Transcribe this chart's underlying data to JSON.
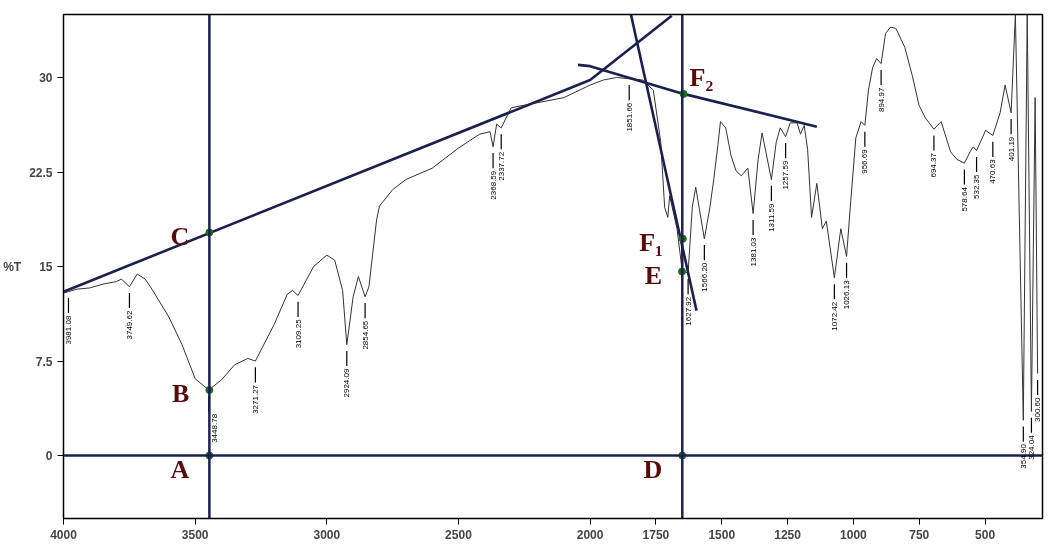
{
  "chart_data": {
    "type": "line",
    "ylabel": "%T",
    "xlim": [
      4000,
      282
    ],
    "xticks": [
      4000,
      3500,
      3000,
      2500,
      2000,
      1750,
      1500,
      1250,
      1000,
      750,
      500
    ],
    "ylim": [
      -5,
      35
    ],
    "yticks": [
      0,
      7.5,
      15,
      22.5,
      30
    ],
    "series": [
      {
        "color": "#333333",
        "x": [
          4000,
          3981.08,
          3950,
          3900,
          3850,
          3800,
          3780,
          3749.62,
          3720,
          3690,
          3670,
          3600,
          3550,
          3500,
          3448.78,
          3400,
          3350,
          3300,
          3271.27,
          3200,
          3150,
          3130,
          3109.25,
          3050,
          3000,
          2970,
          2940,
          2924.09,
          2900,
          2880,
          2854.65,
          2840,
          2811,
          2800,
          2750,
          2700,
          2600,
          2500,
          2420,
          2380,
          2368.59,
          2355,
          2337.72,
          2300,
          2200,
          2100,
          2000,
          1950,
          1900,
          1851.66,
          1800,
          1760,
          1732,
          1717,
          1705,
          1698,
          1670,
          1650,
          1627.92,
          1612,
          1599,
          1566.2,
          1545,
          1530,
          1515,
          1505,
          1485,
          1465,
          1446,
          1426,
          1401,
          1381.03,
          1362,
          1347,
          1311.59,
          1293,
          1278,
          1257.59,
          1240,
          1214,
          1201,
          1187,
          1174,
          1159,
          1139,
          1118,
          1103,
          1072.42,
          1048,
          1026.13,
          1012,
          991,
          971,
          956.69,
          943,
          927,
          912,
          894.97,
          878,
          859,
          839,
          805,
          776,
          751,
          727,
          694.37,
          667,
          631,
          607,
          578.64,
          557,
          545,
          532.35,
          498,
          470.63,
          443,
          424,
          401.19,
          385,
          354.9,
          340,
          324.04,
          310,
          300.6
        ],
        "values": [
          12.9,
          13.0,
          13.2,
          13.3,
          13.6,
          13.8,
          14.0,
          13.4,
          14.4,
          14.0,
          13.4,
          11.0,
          8.8,
          6.1,
          5.2,
          6.0,
          7.2,
          7.7,
          7.5,
          10.4,
          12.8,
          13.1,
          12.7,
          15.0,
          15.9,
          15.5,
          13.1,
          8.8,
          12.6,
          14.2,
          12.6,
          13.4,
          18.7,
          19.8,
          21.1,
          21.9,
          22.8,
          24.4,
          25.5,
          25.7,
          24.5,
          26.3,
          26.0,
          27.6,
          28.0,
          28.4,
          29.4,
          29.8,
          30.0,
          29.9,
          29.8,
          29.0,
          24.9,
          19.7,
          18.9,
          20.6,
          18.0,
          14.6,
          14.5,
          19.7,
          21.3,
          17.2,
          19.7,
          22.0,
          24.6,
          26.5,
          26.0,
          23.8,
          22.6,
          22.2,
          22.8,
          19.2,
          23.5,
          25.6,
          21.9,
          24.9,
          26.0,
          25.3,
          26.4,
          26.4,
          25.5,
          26.2,
          24.3,
          18.9,
          21.6,
          18.0,
          18.6,
          14.1,
          18.0,
          15.8,
          19.7,
          25.2,
          26.5,
          26.2,
          29.0,
          30.8,
          31.5,
          31.1,
          33.5,
          34.0,
          33.9,
          32.4,
          30.1,
          27.8,
          26.8,
          25.9,
          26.5,
          24.1,
          23.5,
          23.2,
          24.1,
          24.5,
          24.2,
          25.8,
          25.4,
          27.2,
          29.4,
          27.2,
          35.0,
          2.8,
          35.0,
          3.5,
          28.4,
          6.5
        ]
      },
      {
        "color": "#1b2050",
        "x": [
          4000,
          2000,
          1690
        ],
        "values": [
          13.0,
          29.8,
          34.9
        ]
      },
      {
        "color": "#1b2050",
        "x": [
          2046,
          2000,
          1645,
          1139
        ],
        "values": [
          31.0,
          30.9,
          28.7,
          26.1
        ]
      },
      {
        "color": "#1b2050",
        "x": [
          1845,
          1596
        ],
        "values": [
          35.0,
          11.5
        ]
      },
      {
        "type": "scatter",
        "marker": "circle",
        "color": "#1e6b1e",
        "x": [
          3446,
          3446,
          3446,
          1650,
          1651,
          1648,
          1645
        ],
        "values": [
          0,
          5.2,
          17.7,
          0,
          14.6,
          17.2,
          28.7
        ],
        "value_labels": [
          "A",
          "B",
          "C",
          "D",
          "E",
          "F₁",
          "F₂"
        ]
      }
    ],
    "ref_lines": [
      {
        "axis": "x",
        "value": 3446,
        "color": "#1b2050"
      },
      {
        "axis": "x",
        "value": 1650,
        "color": "#1b2050"
      },
      {
        "axis": "y",
        "value": 0,
        "color": "#1b2050"
      }
    ],
    "annotations": [
      {
        "text": "3981.08",
        "x": 3981.08,
        "y": 13.0
      },
      {
        "text": "3749.62",
        "x": 3749.62,
        "y": 13.4
      },
      {
        "text": "3448.78",
        "x": 3448.78,
        "y": 5.2
      },
      {
        "text": "3271.27",
        "x": 3271.27,
        "y": 7.5
      },
      {
        "text": "3109.25",
        "x": 3109.25,
        "y": 12.7
      },
      {
        "text": "2924.09",
        "x": 2924.09,
        "y": 8.8
      },
      {
        "text": "2854.65",
        "x": 2854.65,
        "y": 12.6
      },
      {
        "text": "2368.59",
        "x": 2368.59,
        "y": 24.5
      },
      {
        "text": "2337.72",
        "x": 2337.72,
        "y": 26.0
      },
      {
        "text": "1851.66",
        "x": 1851.66,
        "y": 29.9
      },
      {
        "text": "1627.92",
        "x": 1627.92,
        "y": 14.5
      },
      {
        "text": "1566.20",
        "x": 1566.2,
        "y": 17.2
      },
      {
        "text": "1381.03",
        "x": 1381.03,
        "y": 19.2
      },
      {
        "text": "1311.59",
        "x": 1311.59,
        "y": 21.9
      },
      {
        "text": "1257.59",
        "x": 1257.59,
        "y": 25.3
      },
      {
        "text": "1072.42",
        "x": 1072.42,
        "y": 14.1
      },
      {
        "text": "1026.13",
        "x": 1026.13,
        "y": 15.8
      },
      {
        "text": "956.69",
        "x": 956.69,
        "y": 26.2
      },
      {
        "text": "894.97",
        "x": 894.97,
        "y": 31.1
      },
      {
        "text": "694.37",
        "x": 694.37,
        "y": 25.9
      },
      {
        "text": "578.64",
        "x": 578.64,
        "y": 23.2
      },
      {
        "text": "532.35",
        "x": 532.35,
        "y": 24.2
      },
      {
        "text": "470.63",
        "x": 470.63,
        "y": 25.4
      },
      {
        "text": "401.19",
        "x": 401.19,
        "y": 27.2
      },
      {
        "text": "354.90",
        "x": 354.9,
        "y": 2.8
      },
      {
        "text": "324.04",
        "x": 324.04,
        "y": 3.5
      },
      {
        "text": "300.60",
        "x": 300.6,
        "y": 6.5
      }
    ]
  }
}
